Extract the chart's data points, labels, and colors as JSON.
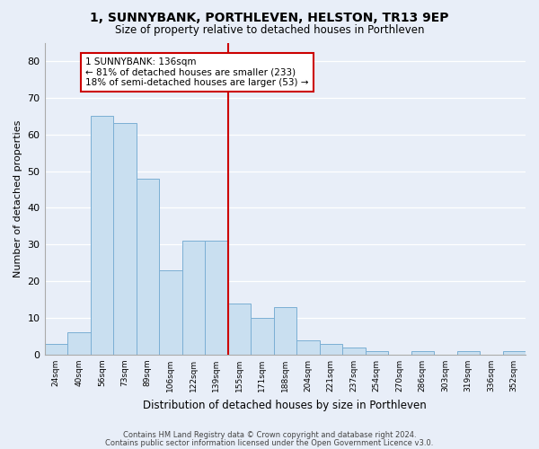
{
  "title": "1, SUNNYBANK, PORTHLEVEN, HELSTON, TR13 9EP",
  "subtitle": "Size of property relative to detached houses in Porthleven",
  "xlabel": "Distribution of detached houses by size in Porthleven",
  "ylabel": "Number of detached properties",
  "bar_labels": [
    "24sqm",
    "40sqm",
    "56sqm",
    "73sqm",
    "89sqm",
    "106sqm",
    "122sqm",
    "139sqm",
    "155sqm",
    "171sqm",
    "188sqm",
    "204sqm",
    "221sqm",
    "237sqm",
    "254sqm",
    "270sqm",
    "286sqm",
    "303sqm",
    "319sqm",
    "336sqm",
    "352sqm"
  ],
  "bar_values": [
    3,
    6,
    65,
    63,
    48,
    23,
    31,
    31,
    14,
    10,
    13,
    4,
    3,
    2,
    1,
    0,
    1,
    0,
    1,
    0,
    1
  ],
  "bar_color": "#c9dff0",
  "bar_edge_color": "#7bafd4",
  "highlight_line_color": "#cc0000",
  "annotation_title": "1 SUNNYBANK: 136sqm",
  "annotation_line1": "← 81% of detached houses are smaller (233)",
  "annotation_line2": "18% of semi-detached houses are larger (53) →",
  "annotation_box_color": "#cc0000",
  "ylim": [
    0,
    85
  ],
  "yticks": [
    0,
    10,
    20,
    30,
    40,
    50,
    60,
    70,
    80
  ],
  "footnote1": "Contains HM Land Registry data © Crown copyright and database right 2024.",
  "footnote2": "Contains public sector information licensed under the Open Government Licence v3.0.",
  "bg_color": "#e8eef8",
  "plot_bg_color": "#e8eef8",
  "highlight_bar_index": 7,
  "red_line_x": 7.5
}
